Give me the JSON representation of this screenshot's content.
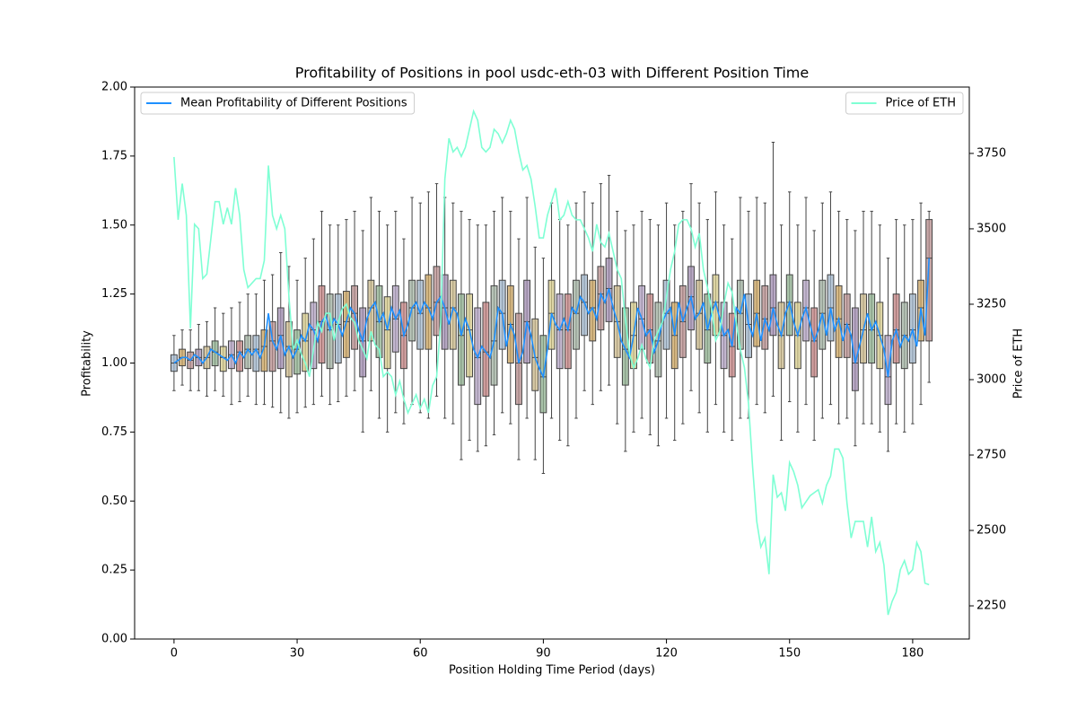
{
  "chart_data": {
    "type": "box",
    "title": "Profitability of Positions in pool usdc-eth-03 with Different Position Time",
    "xlabel": "Position Holding Time Period (days)",
    "ylabel": "Profitability",
    "y2label": "Price of ETH",
    "ylabel_color": "#1e90ff",
    "y2label_color": "#7fffd4",
    "xlim": [
      -9.6,
      193.8
    ],
    "xticks": [
      0,
      30,
      60,
      90,
      120,
      150,
      180
    ],
    "ylim": [
      0,
      2
    ],
    "yticks": [
      {
        "value": 0,
        "label": "0.00"
      },
      {
        "value": 0.25,
        "label": "0.25"
      },
      {
        "value": 0.5,
        "label": "0.50"
      },
      {
        "value": 0.75,
        "label": "0.75"
      },
      {
        "value": 1,
        "label": "1.00"
      },
      {
        "value": 1.25,
        "label": "1.25"
      },
      {
        "value": 1.5,
        "label": "1.50"
      },
      {
        "value": 1.75,
        "label": "1.75"
      },
      {
        "value": 2,
        "label": "2.00"
      }
    ],
    "y2lim": [
      2140,
      3970
    ],
    "y2ticks": [
      2250,
      2500,
      2750,
      3000,
      3250,
      3500,
      3750
    ],
    "boxes": {
      "x": [
        0,
        2,
        4,
        6,
        8,
        10,
        12,
        14,
        16,
        18,
        20,
        22,
        24,
        26,
        28,
        30,
        32,
        34,
        36,
        38,
        40,
        42,
        44,
        46,
        48,
        50,
        52,
        54,
        56,
        58,
        60,
        62,
        64,
        66,
        68,
        70,
        72,
        74,
        76,
        78,
        80,
        82,
        84,
        86,
        88,
        90,
        92,
        94,
        96,
        98,
        100,
        102,
        104,
        106,
        108,
        110,
        112,
        114,
        116,
        118,
        120,
        122,
        124,
        126,
        128,
        130,
        132,
        134,
        136,
        138,
        140,
        142,
        144,
        146,
        148,
        150,
        152,
        154,
        156,
        158,
        160,
        162,
        164,
        166,
        168,
        170,
        172,
        174,
        176,
        178,
        180,
        182,
        184
      ],
      "low": [
        0.9,
        0.92,
        0.9,
        0.9,
        0.88,
        0.9,
        0.88,
        0.85,
        0.86,
        0.88,
        0.85,
        0.85,
        0.84,
        0.82,
        0.8,
        0.82,
        0.84,
        0.85,
        0.88,
        0.85,
        0.86,
        0.88,
        0.9,
        0.75,
        0.9,
        0.8,
        0.75,
        0.82,
        0.78,
        0.85,
        0.82,
        0.8,
        0.88,
        0.8,
        0.78,
        0.65,
        0.72,
        0.68,
        0.7,
        0.74,
        0.82,
        0.78,
        0.65,
        0.8,
        0.65,
        0.6,
        0.8,
        0.72,
        0.7,
        0.8,
        0.9,
        0.85,
        0.9,
        0.92,
        0.78,
        0.68,
        0.75,
        0.8,
        0.74,
        0.7,
        0.8,
        0.72,
        0.78,
        0.9,
        0.82,
        0.75,
        0.85,
        0.75,
        0.72,
        0.8,
        0.8,
        0.85,
        0.82,
        0.88,
        0.72,
        0.86,
        0.75,
        0.85,
        0.72,
        0.8,
        0.85,
        0.78,
        0.8,
        0.7,
        0.78,
        0.78,
        0.75,
        0.68,
        0.78,
        0.75,
        0.78,
        0.85,
        0.93
      ],
      "q1": [
        0.97,
        0.99,
        0.98,
        0.99,
        0.98,
        0.99,
        0.97,
        0.98,
        0.97,
        0.98,
        0.97,
        0.97,
        0.97,
        0.98,
        0.95,
        0.96,
        0.97,
        0.98,
        1.0,
        0.98,
        1.0,
        1.02,
        1.05,
        0.95,
        1.08,
        1.02,
        0.98,
        1.04,
        0.98,
        1.08,
        1.05,
        1.05,
        1.1,
        1.05,
        1.05,
        0.92,
        0.95,
        0.85,
        0.88,
        0.92,
        1.05,
        1.0,
        0.85,
        1.0,
        0.9,
        0.82,
        1.05,
        0.98,
        0.98,
        1.05,
        1.1,
        1.08,
        1.12,
        1.15,
        1.02,
        0.92,
        0.98,
        1.05,
        1.0,
        0.95,
        1.05,
        0.98,
        1.02,
        1.12,
        1.05,
        1.0,
        1.1,
        0.98,
        0.95,
        1.05,
        1.02,
        1.06,
        1.05,
        1.1,
        0.98,
        1.1,
        0.98,
        1.08,
        0.95,
        1.05,
        1.08,
        1.02,
        1.02,
        0.9,
        1.0,
        1.0,
        0.98,
        0.85,
        1.0,
        0.98,
        1.0,
        1.08,
        1.08
      ],
      "median": [
        1.0,
        1.02,
        1.01,
        1.02,
        1.02,
        1.04,
        1.02,
        1.03,
        1.04,
        1.05,
        1.05,
        1.06,
        1.08,
        1.1,
        1.06,
        1.05,
        1.08,
        1.12,
        1.15,
        1.12,
        1.14,
        1.15,
        1.18,
        1.08,
        1.2,
        1.15,
        1.12,
        1.16,
        1.1,
        1.2,
        1.18,
        1.2,
        1.22,
        1.2,
        1.2,
        1.1,
        1.12,
        1.02,
        1.04,
        1.08,
        1.18,
        1.14,
        1.0,
        1.15,
        1.02,
        0.95,
        1.18,
        1.12,
        1.12,
        1.18,
        1.22,
        1.2,
        1.25,
        1.27,
        1.15,
        1.05,
        1.1,
        1.16,
        1.12,
        1.08,
        1.18,
        1.1,
        1.15,
        1.24,
        1.18,
        1.12,
        1.22,
        1.1,
        1.06,
        1.18,
        1.14,
        1.18,
        1.16,
        1.2,
        1.1,
        1.22,
        1.1,
        1.2,
        1.08,
        1.18,
        1.2,
        1.16,
        1.14,
        1.0,
        1.12,
        1.12,
        1.1,
        0.95,
        1.12,
        1.1,
        1.12,
        1.2,
        1.38
      ],
      "q3": [
        1.03,
        1.05,
        1.04,
        1.05,
        1.06,
        1.08,
        1.06,
        1.08,
        1.08,
        1.1,
        1.1,
        1.12,
        1.15,
        1.2,
        1.15,
        1.12,
        1.18,
        1.22,
        1.28,
        1.25,
        1.25,
        1.26,
        1.28,
        1.2,
        1.3,
        1.28,
        1.24,
        1.28,
        1.22,
        1.3,
        1.3,
        1.32,
        1.35,
        1.32,
        1.3,
        1.25,
        1.25,
        1.2,
        1.22,
        1.28,
        1.3,
        1.28,
        1.18,
        1.3,
        1.16,
        1.1,
        1.3,
        1.25,
        1.25,
        1.3,
        1.32,
        1.3,
        1.35,
        1.38,
        1.28,
        1.2,
        1.22,
        1.28,
        1.25,
        1.22,
        1.3,
        1.22,
        1.28,
        1.35,
        1.3,
        1.25,
        1.32,
        1.22,
        1.18,
        1.3,
        1.25,
        1.3,
        1.28,
        1.32,
        1.22,
        1.32,
        1.22,
        1.3,
        1.2,
        1.3,
        1.32,
        1.28,
        1.25,
        1.2,
        1.25,
        1.25,
        1.22,
        1.1,
        1.25,
        1.22,
        1.25,
        1.3,
        1.52
      ],
      "high": [
        1.1,
        1.12,
        1.12,
        1.14,
        1.15,
        1.2,
        1.18,
        1.2,
        1.22,
        1.25,
        1.25,
        1.3,
        1.32,
        1.4,
        1.35,
        1.3,
        1.38,
        1.45,
        1.55,
        1.5,
        1.5,
        1.52,
        1.55,
        1.48,
        1.6,
        1.55,
        1.5,
        1.55,
        1.45,
        1.6,
        1.58,
        1.62,
        1.65,
        1.6,
        1.58,
        1.55,
        1.52,
        1.5,
        1.5,
        1.55,
        1.6,
        1.55,
        1.45,
        1.6,
        1.42,
        1.38,
        1.58,
        1.52,
        1.5,
        1.58,
        1.62,
        1.58,
        1.65,
        1.68,
        1.55,
        1.48,
        1.5,
        1.55,
        1.52,
        1.5,
        1.58,
        1.5,
        1.55,
        1.65,
        1.58,
        1.52,
        1.62,
        1.5,
        1.45,
        1.6,
        1.55,
        1.6,
        1.58,
        1.8,
        1.5,
        1.62,
        1.5,
        1.6,
        1.48,
        1.58,
        1.62,
        1.55,
        1.52,
        1.48,
        1.55,
        1.55,
        1.5,
        1.38,
        1.52,
        1.5,
        1.52,
        1.58,
        1.55
      ],
      "colors": [
        "#9fb4c9",
        "#c9a35f",
        "#b58c8c",
        "#a08cb0",
        "#c9b88a",
        "#8fb08f",
        "#d4c98a",
        "#b0a0c0",
        "#c08080",
        "#a0b0a0"
      ]
    },
    "x": [
      0,
      1,
      2,
      3,
      4,
      5,
      6,
      7,
      8,
      9,
      10,
      11,
      12,
      13,
      14,
      15,
      16,
      17,
      18,
      19,
      20,
      21,
      22,
      23,
      24,
      25,
      26,
      27,
      28,
      29,
      30,
      31,
      32,
      33,
      34,
      35,
      36,
      37,
      38,
      39,
      40,
      41,
      42,
      43,
      44,
      45,
      46,
      47,
      48,
      49,
      50,
      51,
      52,
      53,
      54,
      55,
      56,
      57,
      58,
      59,
      60,
      61,
      62,
      63,
      64,
      65,
      66,
      67,
      68,
      69,
      70,
      71,
      72,
      73,
      74,
      75,
      76,
      77,
      78,
      79,
      80,
      81,
      82,
      83,
      84,
      85,
      86,
      87,
      88,
      89,
      90,
      91,
      92,
      93,
      94,
      95,
      96,
      97,
      98,
      99,
      100,
      101,
      102,
      103,
      104,
      105,
      106,
      107,
      108,
      109,
      110,
      111,
      112,
      113,
      114,
      115,
      116,
      117,
      118,
      119,
      120,
      121,
      122,
      123,
      124,
      125,
      126,
      127,
      128,
      129,
      130,
      131,
      132,
      133,
      134,
      135,
      136,
      137,
      138,
      139,
      140,
      141,
      142,
      143,
      144,
      145,
      146,
      147,
      148,
      149,
      150,
      151,
      152,
      153,
      154,
      155,
      156,
      157,
      158,
      159,
      160,
      161,
      162,
      163,
      164,
      165,
      166,
      167,
      168,
      169,
      170,
      171,
      172,
      173,
      174,
      175,
      176,
      177,
      178,
      179,
      180,
      181,
      182,
      183,
      184
    ],
    "series": [
      {
        "name": "Mean Profitability of Different Positions",
        "color": "#1e90ff",
        "axis": "y",
        "legend": "upper left",
        "values": [
          1.0,
          1.01,
          1.02,
          1.02,
          1.01,
          1.03,
          1.02,
          1.0,
          1.02,
          1.05,
          1.04,
          1.03,
          1.02,
          1.01,
          1.03,
          1.0,
          1.04,
          1.02,
          1.05,
          1.03,
          1.05,
          1.02,
          1.06,
          1.18,
          1.08,
          1.05,
          1.1,
          1.03,
          1.06,
          1.02,
          1.05,
          1.1,
          1.08,
          1.14,
          1.12,
          1.08,
          1.15,
          1.17,
          1.12,
          1.16,
          1.14,
          1.1,
          1.15,
          1.2,
          1.18,
          1.12,
          1.08,
          1.16,
          1.2,
          1.22,
          1.15,
          1.18,
          1.12,
          1.2,
          1.16,
          1.19,
          1.1,
          1.14,
          1.2,
          1.22,
          1.18,
          1.22,
          1.2,
          1.16,
          1.22,
          1.24,
          1.2,
          1.14,
          1.2,
          1.18,
          1.1,
          1.16,
          1.12,
          1.05,
          1.02,
          1.06,
          1.04,
          1.02,
          1.08,
          1.2,
          1.18,
          1.06,
          1.14,
          1.1,
          1.0,
          1.04,
          1.15,
          1.1,
          1.02,
          0.98,
          0.95,
          1.05,
          1.18,
          1.14,
          1.12,
          1.16,
          1.12,
          1.2,
          1.18,
          1.24,
          1.22,
          1.18,
          1.2,
          1.16,
          1.25,
          1.22,
          1.27,
          1.2,
          1.15,
          1.08,
          1.05,
          1.02,
          1.1,
          1.2,
          1.16,
          1.1,
          1.12,
          1.04,
          1.08,
          1.15,
          1.18,
          1.2,
          1.1,
          1.22,
          1.15,
          1.2,
          1.24,
          1.16,
          1.18,
          1.22,
          1.12,
          1.18,
          1.22,
          1.16,
          1.1,
          1.12,
          1.06,
          1.2,
          1.18,
          1.25,
          1.14,
          1.1,
          1.18,
          1.08,
          1.16,
          1.12,
          1.2,
          1.14,
          1.1,
          1.18,
          1.22,
          1.15,
          1.1,
          1.16,
          1.2,
          1.14,
          1.08,
          1.12,
          1.18,
          1.1,
          1.2,
          1.12,
          1.16,
          1.08,
          1.14,
          1.1,
          1.0,
          1.06,
          1.12,
          1.18,
          1.12,
          1.15,
          1.1,
          1.05,
          0.95,
          1.08,
          1.12,
          1.06,
          1.1,
          1.08,
          1.12,
          1.06,
          1.2,
          1.1,
          1.38
        ]
      },
      {
        "name": "Price of ETH",
        "color": "#7fffd4",
        "axis": "y2",
        "legend": "upper right",
        "values": [
          3738,
          3530,
          3650,
          3545,
          3170,
          3515,
          3500,
          3335,
          3350,
          3470,
          3590,
          3590,
          3515,
          3570,
          3515,
          3635,
          3545,
          3365,
          3305,
          3320,
          3335,
          3335,
          3395,
          3710,
          3545,
          3500,
          3545,
          3500,
          3275,
          3100,
          3130,
          3085,
          3055,
          3010,
          3100,
          3190,
          3160,
          3220,
          3220,
          3130,
          3190,
          3235,
          3250,
          3205,
          3190,
          3130,
          3100,
          3070,
          3160,
          3115,
          3100,
          3010,
          3025,
          3010,
          2950,
          2995,
          2935,
          2890,
          2920,
          2950,
          2905,
          2935,
          2890,
          2980,
          3010,
          3190,
          3665,
          3800,
          3755,
          3770,
          3740,
          3770,
          3830,
          3890,
          3860,
          3770,
          3755,
          3770,
          3830,
          3815,
          3785,
          3815,
          3860,
          3830,
          3755,
          3695,
          3710,
          3665,
          3575,
          3470,
          3470,
          3545,
          3590,
          3635,
          3530,
          3545,
          3590,
          3545,
          3530,
          3530,
          3500,
          3470,
          3425,
          3515,
          3455,
          3440,
          3485,
          3425,
          3365,
          3335,
          3200,
          3085,
          3040,
          3070,
          3115,
          3070,
          3040,
          3130,
          3160,
          3190,
          3275,
          3365,
          3425,
          3515,
          3530,
          3530,
          3500,
          3440,
          3485,
          3365,
          3305,
          3235,
          3130,
          3160,
          3250,
          3320,
          3290,
          3190,
          3100,
          3040,
          2920,
          2710,
          2530,
          2445,
          2475,
          2355,
          2685,
          2610,
          2625,
          2565,
          2725,
          2695,
          2650,
          2575,
          2595,
          2615,
          2625,
          2635,
          2590,
          2650,
          2680,
          2770,
          2770,
          2740,
          2590,
          2475,
          2530,
          2530,
          2530,
          2445,
          2545,
          2430,
          2460,
          2385,
          2220,
          2265,
          2295,
          2370,
          2400,
          2355,
          2370,
          2460,
          2430,
          2325,
          2320
        ]
      }
    ]
  }
}
